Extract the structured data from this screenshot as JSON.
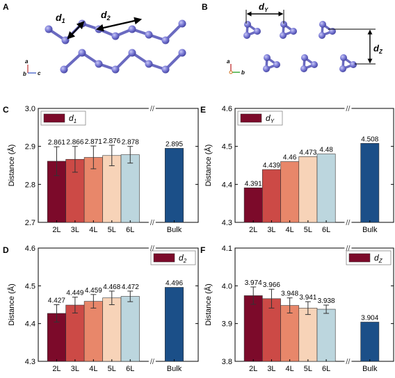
{
  "panels": {
    "A": {
      "letter": "A",
      "d1_label": "d",
      "d1_sub": "1",
      "d2_label": "d",
      "d2_sub": "2",
      "axis_a": "a",
      "axis_b": "b",
      "axis_c": "c"
    },
    "B": {
      "letter": "B",
      "dy_label": "d",
      "dy_sub": "Y",
      "dz_label": "d",
      "dz_sub": "Z",
      "axis_a": "a",
      "axis_b": "b"
    }
  },
  "colors": {
    "2L": "#7c0a2a",
    "3L": "#cc4a46",
    "4L": "#e8876a",
    "5L": "#f7d3b8",
    "6L": "#bcd6de",
    "Bulk": "#1b4f88",
    "atom": "#7a7ad6",
    "bond": "#6a6ac0"
  },
  "chart_data": [
    {
      "id": "C",
      "letter": "C",
      "type": "bar",
      "legend_label": "d",
      "legend_sub": "1",
      "legend_position": "top-left",
      "ylabel": "Distance (Å)",
      "ylim": [
        2.7,
        3.0
      ],
      "yticks": [
        "2.7",
        "2.8",
        "2.9",
        "3.0"
      ],
      "categories": [
        "2L",
        "3L",
        "4L",
        "5L",
        "6L",
        "Bulk"
      ],
      "values": [
        2.861,
        2.866,
        2.871,
        2.876,
        2.878,
        2.895
      ],
      "value_labels": [
        "2.861",
        "2.866",
        "2.871",
        "2.876",
        "2.878",
        "2.895"
      ],
      "errors": [
        0.038,
        0.034,
        0.03,
        0.027,
        0.022,
        0
      ],
      "axis_break_mark": "//"
    },
    {
      "id": "E",
      "letter": "E",
      "type": "bar",
      "legend_label": "d",
      "legend_sub": "Y",
      "legend_position": "top-left",
      "ylabel": "Distance (Å)",
      "ylim": [
        4.3,
        4.6
      ],
      "yticks": [
        "4.3",
        "4.4",
        "4.5",
        "4.6"
      ],
      "categories": [
        "2L",
        "3L",
        "4L",
        "5L",
        "6L",
        "Bulk"
      ],
      "values": [
        4.391,
        4.439,
        4.46,
        4.473,
        4.48,
        4.508
      ],
      "value_labels": [
        "4.391",
        "4.439",
        "4.46",
        "4.473",
        "4.48",
        "4.508"
      ],
      "errors": [
        0,
        0,
        0,
        0,
        0,
        0
      ],
      "axis_break_mark": "//"
    },
    {
      "id": "D",
      "letter": "D",
      "type": "bar",
      "legend_label": "d",
      "legend_sub": "2",
      "legend_position": "top-right",
      "ylabel": "Distance (Å)",
      "ylim": [
        4.3,
        4.6
      ],
      "yticks": [
        "4.3",
        "4.4",
        "4.5",
        "4.6"
      ],
      "categories": [
        "2L",
        "3L",
        "4L",
        "5L",
        "6L",
        "Bulk"
      ],
      "values": [
        4.427,
        4.449,
        4.459,
        4.468,
        4.472,
        4.496
      ],
      "value_labels": [
        "4.427",
        "4.449",
        "4.459",
        "4.468",
        "4.472",
        "4.496"
      ],
      "errors": [
        0.023,
        0.021,
        0.018,
        0.018,
        0.014,
        0
      ],
      "axis_break_mark": "//"
    },
    {
      "id": "F",
      "letter": "F",
      "type": "bar",
      "legend_label": "d",
      "legend_sub": "Z",
      "legend_position": "top-right",
      "ylabel": "Distance (Å)",
      "ylim": [
        3.8,
        4.1
      ],
      "yticks": [
        "3.8",
        "3.9",
        "4.0",
        "4.1"
      ],
      "categories": [
        "2L",
        "3L",
        "4L",
        "5L",
        "6L",
        "Bulk"
      ],
      "values": [
        3.974,
        3.966,
        3.948,
        3.941,
        3.938,
        3.904
      ],
      "value_labels": [
        "3.974",
        "3.966",
        "3.948",
        "3.941",
        "3.938",
        "3.904"
      ],
      "errors": [
        0.023,
        0.025,
        0.02,
        0.017,
        0.011,
        0
      ],
      "axis_break_mark": "//"
    }
  ]
}
